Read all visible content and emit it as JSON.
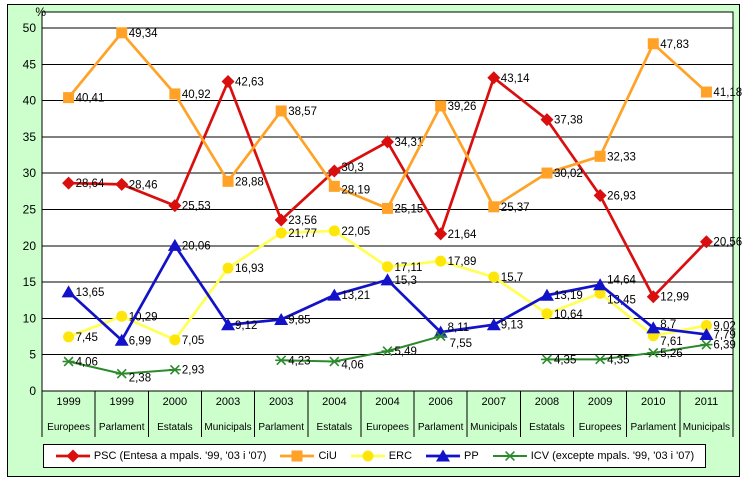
{
  "chart_data": {
    "type": "line",
    "title": "",
    "ylabel": "%",
    "xlabel": "",
    "ylim": [
      0,
      50
    ],
    "yticks": [
      0,
      5,
      10,
      15,
      20,
      25,
      30,
      35,
      40,
      45,
      50
    ],
    "grid": true,
    "legend_position": "bottom",
    "decimal_separator": ",",
    "background_color": "#ccffcc",
    "plot_background": "#ffffff",
    "gridline_color": "#000000",
    "categories": [
      {
        "year": "1999",
        "election": "Europees"
      },
      {
        "year": "1999",
        "election": "Parlament"
      },
      {
        "year": "2000",
        "election": "Estatals"
      },
      {
        "year": "2003",
        "election": "Municipals"
      },
      {
        "year": "2003",
        "election": "Parlament"
      },
      {
        "year": "2004",
        "election": "Estatals"
      },
      {
        "year": "2004",
        "election": "Europees"
      },
      {
        "year": "2006",
        "election": "Parlament"
      },
      {
        "year": "2007",
        "election": "Municipals"
      },
      {
        "year": "2008",
        "election": "Estatals"
      },
      {
        "year": "2009",
        "election": "Europees"
      },
      {
        "year": "2010",
        "election": "Parlament"
      },
      {
        "year": "2011",
        "election": "Municipals"
      }
    ],
    "series": [
      {
        "id": "psc",
        "name": "PSC (Entesa a mpals. '99, '03 i '07)",
        "marker": "diamond",
        "color": "#d90f0f",
        "values": [
          28.64,
          28.46,
          25.53,
          42.63,
          23.56,
          30.3,
          34.31,
          21.64,
          43.14,
          37.38,
          26.93,
          12.99,
          20.56
        ]
      },
      {
        "id": "ciu",
        "name": "CiU",
        "marker": "square",
        "color": "#ffa227",
        "values": [
          40.41,
          49.34,
          40.92,
          28.88,
          38.57,
          28.19,
          25.15,
          39.26,
          25.37,
          30.02,
          32.33,
          47.83,
          41.18
        ]
      },
      {
        "id": "erc",
        "name": "ERC",
        "marker": "circle",
        "color": "#ffe60a",
        "line_color": "#ffff55",
        "values": [
          7.45,
          10.29,
          7.05,
          16.93,
          21.77,
          22.05,
          17.11,
          17.89,
          15.7,
          10.64,
          13.45,
          7.61,
          9.02
        ]
      },
      {
        "id": "pp",
        "name": "PP",
        "marker": "triangle",
        "color": "#1212c8",
        "values": [
          13.65,
          6.99,
          20.06,
          9.12,
          9.85,
          13.21,
          15.3,
          8.11,
          9.13,
          13.19,
          14.64,
          8.7,
          7.79
        ]
      },
      {
        "id": "icv",
        "name": "ICV (excepte mpals. '99, '03 i '07)",
        "marker": "asterisk",
        "color": "#2c8a2c",
        "line_width": 2,
        "values": [
          4.06,
          2.38,
          2.93,
          null,
          4.23,
          4.06,
          5.49,
          7.55,
          null,
          4.35,
          4.35,
          5.26,
          6.39
        ]
      }
    ]
  }
}
